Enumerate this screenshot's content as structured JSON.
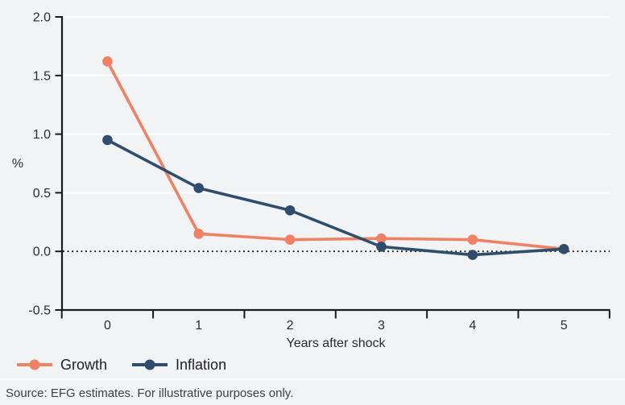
{
  "chart_data": {
    "type": "line",
    "title": "",
    "xlabel": "Years after shock",
    "ylabel": "%",
    "x": [
      0,
      1,
      2,
      3,
      4,
      5
    ],
    "xtick_labels": [
      "0",
      "1",
      "2",
      "3",
      "4",
      "5"
    ],
    "yticks": [
      2.0,
      1.5,
      1.0,
      0.5,
      0.0,
      -0.5
    ],
    "ytick_labels": [
      "2.0",
      "1.5",
      "1.0",
      "0.5",
      "0.0",
      "-0.5"
    ],
    "ylim": [
      -0.5,
      2.0
    ],
    "grid": "horizontal white gridlines on light gray background",
    "zero_line": "dotted black line at y=0",
    "legend_position": "bottom-left",
    "series": [
      {
        "name": "Growth",
        "color": "#EF8165",
        "values": [
          1.62,
          0.15,
          0.1,
          0.11,
          0.1,
          0.02
        ]
      },
      {
        "name": "Inflation",
        "color": "#2F4E6E",
        "values": [
          0.95,
          0.54,
          0.35,
          0.04,
          -0.03,
          0.02
        ]
      }
    ]
  },
  "colors": {
    "background": "#F2F3F5",
    "gridline": "#FFFFFF",
    "axis": "#1A1A1A",
    "tick_text": "#2B2B2B"
  },
  "source_note": "Source: EFG estimates. For illustrative purposes only."
}
